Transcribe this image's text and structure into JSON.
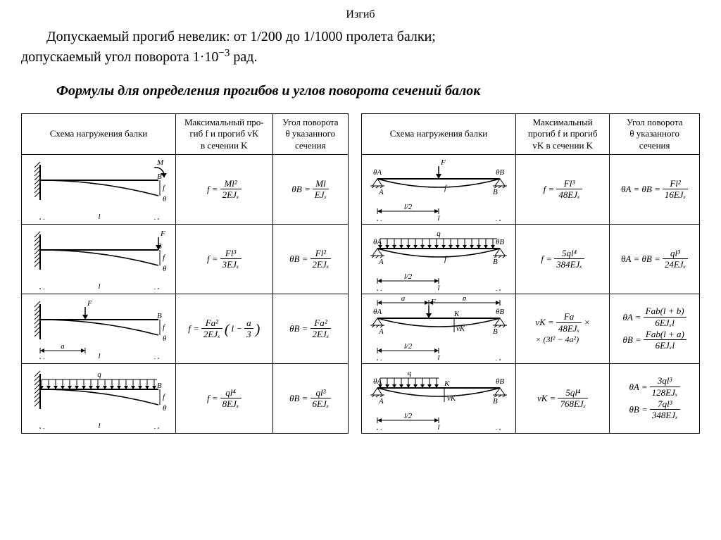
{
  "title": "Изгиб",
  "intro_line1_a": "Допускаемый прогиб невелик: от ",
  "intro_line1_b": "1/200",
  "intro_line1_c": " до ",
  "intro_line1_d": "1/1000",
  "intro_line1_e": " пролета балки;",
  "intro_line2_a": "допускаемый угол поворота ",
  "intro_line2_b": "1·10",
  "intro_line2_sup": "−3",
  "intro_line2_c": " рад.",
  "subtitle": "Формулы для определения прогибов и углов поворота сечений балок",
  "headers": {
    "h1": "Схема нагружения балки",
    "h2a": "Максимальный про-",
    "h2b": "гиб f и прогиб vK",
    "h2c": "в сечении K",
    "h2a_alt": "Максимальный",
    "h2b_alt": "прогиб f и прогиб",
    "h2c_alt": "vK в сечении K",
    "h3a": "Угол поворота",
    "h3b": "θ указанного",
    "h3c": "сечения"
  },
  "left_rows": [
    {
      "diag": {
        "type": "cantilever_moment",
        "labels": {
          "len": "l",
          "M": "M",
          "B": "B",
          "f": "f",
          "theta": "θ"
        }
      },
      "f_lhs": "f =",
      "f_num": "Ml²",
      "f_den": "2EJₓ",
      "t_lhs": "θB =",
      "t_num": "Ml",
      "t_den": "EJₓ"
    },
    {
      "diag": {
        "type": "cantilever_endF",
        "labels": {
          "len": "l",
          "F": "F",
          "B": "B",
          "f": "f",
          "theta": "θ"
        }
      },
      "f_lhs": "f =",
      "f_num": "Fl³",
      "f_den": "3EJₓ",
      "t_lhs": "θB =",
      "t_num": "Fl²",
      "t_den": "2EJₓ"
    },
    {
      "diag": {
        "type": "cantilever_midF",
        "labels": {
          "len": "l",
          "a": "a",
          "F": "F",
          "B": "B",
          "f": "f",
          "theta": "θ"
        }
      },
      "f_lhs": "f =",
      "f_num": "Fa²",
      "f_den": "2EJₓ",
      "f_tail_num": "l −",
      "f_tail_frac_num": "a",
      "f_tail_frac_den": "3",
      "t_lhs": "θB =",
      "t_num": "Fa²",
      "t_den": "2EJₓ"
    },
    {
      "diag": {
        "type": "cantilever_udl",
        "labels": {
          "len": "l",
          "q": "q",
          "B": "B",
          "f": "f",
          "theta": "θ"
        }
      },
      "f_lhs": "f =",
      "f_num": "ql⁴",
      "f_den": "8EJₓ",
      "t_lhs": "θB =",
      "t_num": "ql³",
      "t_den": "6EJₓ"
    }
  ],
  "right_rows": [
    {
      "diag": {
        "type": "simple_centerF",
        "labels": {
          "len": "l",
          "half": "l/2",
          "F": "F",
          "A": "A",
          "B": "B",
          "f": "f",
          "tA": "θA",
          "tB": "θB"
        }
      },
      "f_lhs": "f =",
      "f_num": "Fl³",
      "f_den": "48EJₓ",
      "t_lhs": "θA = θB =",
      "t_num": "Fl²",
      "t_den": "16EJₓ"
    },
    {
      "diag": {
        "type": "simple_udl",
        "labels": {
          "len": "l",
          "half": "l/2",
          "q": "q",
          "A": "A",
          "B": "B",
          "f": "f",
          "tA": "θA",
          "tB": "θB"
        }
      },
      "f_lhs": "f =",
      "f_num": "5ql⁴",
      "f_den": "384EJₓ",
      "t_lhs": "θA = θB =",
      "t_num": "ql³",
      "t_den": "24EJₓ"
    },
    {
      "diag": {
        "type": "simple_offsetF",
        "labels": {
          "len": "l",
          "half": "l/2",
          "a": "a",
          "b": "b",
          "F": "F",
          "K": "K",
          "A": "A",
          "B": "B",
          "vK": "vK",
          "tA": "θA",
          "tB": "θB"
        }
      },
      "vk_lhs": "vK =",
      "vk_num": "Fa",
      "vk_den": "48EJₓ",
      "vk_times": "×",
      "vk_line2": "× (3l² − 4a²)",
      "tA_lhs": "θA =",
      "tA_num": "Fab(l + b)",
      "tA_den": "6EJₓl",
      "tB_lhs": "θB =",
      "tB_num": "Fab(l + a)",
      "tB_den": "6EJₓl"
    },
    {
      "diag": {
        "type": "simple_partial_udl",
        "labels": {
          "len": "l",
          "half": "l/2",
          "q": "q",
          "K": "K",
          "A": "A",
          "B": "B",
          "vK": "vK",
          "tA": "θA",
          "tB": "θB"
        }
      },
      "vk_lhs": "vK =",
      "vk_num": "5ql⁴",
      "vk_den": "768EJₓ",
      "tA_lhs": "θA =",
      "tA_num": "3ql³",
      "tA_den": "128EJₓ",
      "tB_lhs": "θB =",
      "tB_num": "7ql³",
      "tB_den": "348EJₓ"
    }
  ]
}
